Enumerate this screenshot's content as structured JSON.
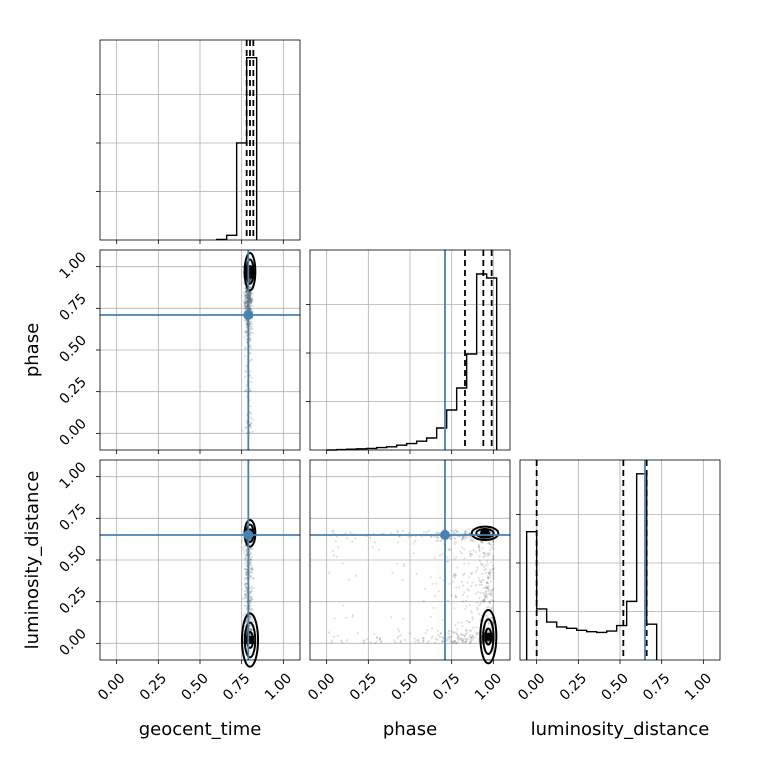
{
  "chart_data": {
    "type": "scatter",
    "subtype": "corner-plot",
    "parameters": [
      "geocent_time",
      "phase",
      "luminosity_distance"
    ],
    "axis_range": [
      -0.1,
      1.1
    ],
    "ticks": [
      0.0,
      0.25,
      0.5,
      0.75,
      1.0
    ],
    "tick_labels": [
      "0.00",
      "0.25",
      "0.50",
      "0.75",
      "1.00"
    ],
    "grid": true,
    "truth_color": "#4682b4",
    "truths": {
      "geocent_time": 0.79,
      "phase": 0.71,
      "luminosity_distance": 0.65
    },
    "quantiles": {
      "geocent_time": [
        0.78,
        0.8,
        0.82
      ],
      "phase": [
        0.83,
        0.94,
        0.99
      ],
      "luminosity_distance": [
        0.0,
        0.52,
        0.66
      ]
    },
    "histograms": {
      "geocent_time": {
        "edges": [
          0.6,
          0.66,
          0.72,
          0.78,
          0.84
        ],
        "counts": [
          1,
          8,
          165,
          310
        ],
        "ymax": 340
      },
      "phase": {
        "edges": [
          0.0,
          0.06,
          0.12,
          0.18,
          0.24,
          0.3,
          0.36,
          0.42,
          0.48,
          0.54,
          0.6,
          0.66,
          0.72,
          0.78,
          0.84,
          0.9,
          0.96,
          1.02
        ],
        "counts": [
          0,
          1,
          2,
          3,
          4,
          6,
          8,
          12,
          16,
          22,
          30,
          55,
          100,
          155,
          240,
          440,
          430
        ],
        "ymax": 500
      },
      "luminosity_distance": {
        "edges": [
          -0.06,
          0.0,
          0.06,
          0.12,
          0.18,
          0.24,
          0.3,
          0.36,
          0.42,
          0.48,
          0.54,
          0.6,
          0.66,
          0.72
        ],
        "counts": [
          186,
          74,
          55,
          48,
          46,
          43,
          41,
          40,
          42,
          50,
          85,
          270,
          52
        ],
        "ymax": 290
      }
    },
    "contour_levels": 3
  }
}
